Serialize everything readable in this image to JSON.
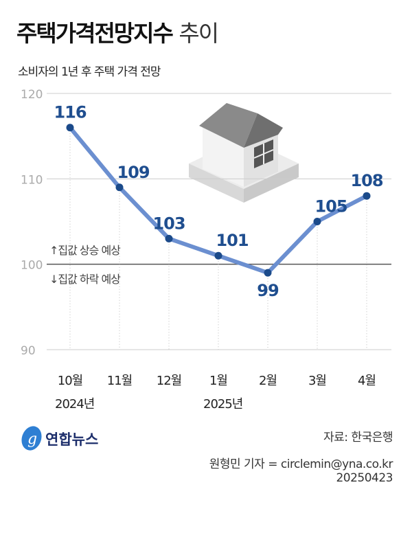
{
  "title_bold": "주택가격전망지수",
  "title_light": "추이",
  "subtitle": "소비자의 1년 후 주택 가격 전망",
  "chart_data": {
    "type": "line",
    "categories": [
      "10월",
      "11월",
      "12월",
      "1월",
      "2월",
      "3월",
      "4월"
    ],
    "year_labels": [
      {
        "index": 0,
        "label": "2024년"
      },
      {
        "index": 3,
        "label": "2025년"
      }
    ],
    "values": [
      116,
      109,
      103,
      101,
      99,
      105,
      108
    ],
    "ylim": [
      90,
      120
    ],
    "yticks": [
      90,
      100,
      110,
      120
    ],
    "reference_line": 100,
    "annotations": {
      "above": "↑집값 상승 예상",
      "below": "↓집값 하락 예상"
    },
    "line_color": "#6b8fd0",
    "point_color": "#1b4a8a",
    "label_color": "#1f4e8f"
  },
  "logo": "연합뉴스",
  "source": "자료: 한국은행",
  "credit": "원형민 기자 = circlemin@yna.co.kr",
  "date": "20250423"
}
